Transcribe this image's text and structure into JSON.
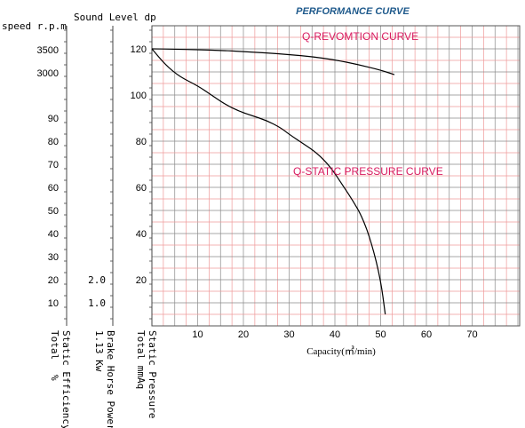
{
  "chart_data": {
    "type": "line",
    "title": "PERFORMANCE CURVE",
    "title_color": "#1f5a8c",
    "xlabel": "Capacity(㎥/min)",
    "xlim": [
      0,
      80
    ],
    "x_ticks": [
      "10",
      "20",
      "30",
      "40",
      "50",
      "60",
      "70"
    ],
    "ylim": [
      0,
      140
    ],
    "grid": true,
    "colors": {
      "grid_major": "#8a8a8a",
      "grid_minor": "#ef9a9a",
      "curve": "#000000",
      "annotation": "#d81b60"
    },
    "left_scales": [
      {
        "header": "speed r.p.m",
        "ticks": [
          "3500",
          "3000"
        ]
      },
      {
        "header": "",
        "ticks": [
          "90",
          "80",
          "70",
          "60",
          "50",
          "40",
          "30",
          "20",
          "10"
        ]
      },
      {
        "header": "Sound Level dp",
        "ticks": [
          "2.0",
          "1.0"
        ]
      },
      {
        "header": "",
        "ticks": [
          "120",
          "100",
          "80",
          "60",
          "40",
          "20"
        ]
      }
    ],
    "bottom_labels": [
      [
        "Total",
        "Static Efficiency",
        "%"
      ],
      [
        "1.13 Kw",
        "Brake Horse Power"
      ],
      [
        "Total mmAq",
        "Static Pressure"
      ]
    ],
    "series": [
      {
        "name": "Q-REVOMTION CURVE",
        "x": [
          0,
          5,
          10,
          15,
          20,
          25,
          30,
          35,
          40,
          45,
          50,
          53
        ],
        "y": [
          3520,
          3510,
          3500,
          3485,
          3460,
          3430,
          3395,
          3350,
          3280,
          3180,
          3060,
          2960
        ]
      },
      {
        "name": "Q-STATIC PRESSURE CURVE",
        "x": [
          0,
          3,
          6,
          10,
          13,
          16,
          19,
          22,
          25,
          28,
          30,
          33,
          36,
          39,
          42,
          44,
          46,
          48,
          50,
          51
        ],
        "y": [
          120,
          113,
          108,
          104,
          100,
          96,
          93,
          91,
          89,
          86,
          83,
          79,
          75,
          69,
          60,
          54,
          47,
          36,
          20,
          5
        ]
      }
    ]
  }
}
